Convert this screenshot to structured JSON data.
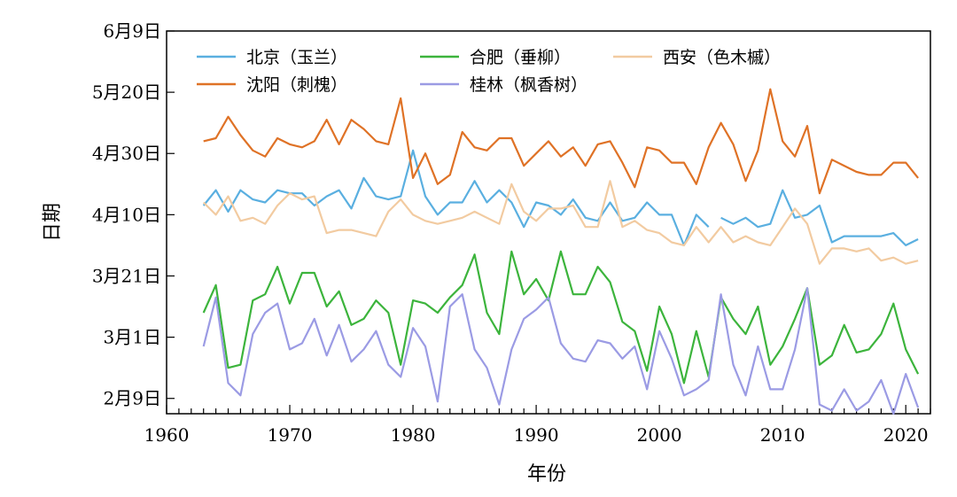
{
  "chart_data": {
    "type": "line",
    "xlabel": "年份",
    "ylabel": "日期",
    "xlim": [
      1960,
      2022
    ],
    "xticks": [
      1960,
      1970,
      1980,
      1990,
      2000,
      2010,
      2020
    ],
    "ylim_doy": [
      35,
      160
    ],
    "yticks": [
      {
        "doy": 40,
        "label": "2月9日"
      },
      {
        "doy": 60,
        "label": "3月1日"
      },
      {
        "doy": 80,
        "label": "3月21日"
      },
      {
        "doy": 100,
        "label": "4月10日"
      },
      {
        "doy": 120,
        "label": "4月30日"
      },
      {
        "doy": 140,
        "label": "5月20日"
      },
      {
        "doy": 160,
        "label": "6月9日"
      }
    ],
    "x": [
      1963,
      1964,
      1965,
      1966,
      1967,
      1968,
      1969,
      1970,
      1971,
      1972,
      1973,
      1974,
      1975,
      1976,
      1977,
      1978,
      1979,
      1980,
      1981,
      1982,
      1983,
      1984,
      1985,
      1986,
      1987,
      1988,
      1989,
      1990,
      1991,
      1992,
      1993,
      1994,
      1995,
      1996,
      1997,
      1998,
      1999,
      2000,
      2001,
      2002,
      2003,
      2004,
      2005,
      2006,
      2007,
      2008,
      2009,
      2010,
      2011,
      2012,
      2013,
      2014,
      2015,
      2016,
      2017,
      2018,
      2019,
      2020,
      2021
    ],
    "series": [
      {
        "name": "北京（玉兰）",
        "color": "#5aafe0",
        "values": [
          103,
          108,
          101,
          108,
          105,
          104,
          108,
          107,
          107,
          103,
          106,
          108,
          102,
          112,
          106,
          105,
          106,
          121,
          106,
          100,
          104,
          104,
          111,
          104,
          108,
          104,
          96,
          104,
          103,
          100,
          105,
          99,
          98,
          104,
          98,
          99,
          104,
          100,
          100,
          90,
          100,
          96,
          99,
          97,
          99,
          96,
          97,
          108,
          99,
          100,
          103,
          91,
          93,
          93,
          93,
          93,
          94,
          90,
          92
        ],
        "segments": [
          [
            1963,
            2004
          ],
          [
            2005,
            2021
          ]
        ]
      },
      {
        "name": "合肥（垂柳）",
        "color": "#3cb43c",
        "values": [
          68,
          77,
          50,
          51,
          72,
          74,
          83,
          71,
          81,
          81,
          70,
          75,
          64,
          66,
          72,
          68,
          51,
          72,
          71,
          68,
          73,
          77,
          87,
          68,
          61,
          88,
          74,
          79,
          72,
          88,
          74,
          74,
          83,
          78,
          65,
          62,
          49,
          70,
          61,
          45,
          62,
          47,
          73,
          66,
          61,
          70,
          51,
          57,
          66,
          76,
          51,
          54,
          64,
          55,
          56,
          61,
          71,
          56,
          48
        ],
        "segments": [
          [
            1963,
            2021
          ]
        ]
      },
      {
        "name": "西安（色木槭）",
        "color": "#f2cba1",
        "values": [
          104,
          100,
          106,
          98,
          99,
          97,
          103,
          107,
          105,
          106,
          94,
          95,
          95,
          94,
          93,
          101,
          105,
          100,
          98,
          97,
          98,
          99,
          101,
          99,
          97,
          110,
          101,
          98,
          102,
          102,
          103,
          96,
          96,
          111,
          96,
          98,
          95,
          94,
          91,
          90,
          96,
          91,
          96,
          91,
          93,
          91,
          90,
          96,
          102,
          97,
          84,
          89,
          89,
          88,
          89,
          85,
          86,
          84,
          85
        ],
        "segments": [
          [
            1963,
            2021
          ]
        ]
      },
      {
        "name": "沈阳（刺槐）",
        "color": "#df7226",
        "values": [
          124,
          125,
          132,
          126,
          121,
          119,
          125,
          123,
          122,
          124,
          131,
          123,
          131,
          128,
          124,
          123,
          138,
          112,
          120,
          110,
          113,
          127,
          122,
          121,
          125,
          125,
          116,
          120,
          124,
          119,
          122,
          116,
          123,
          124,
          117,
          109,
          122,
          121,
          117,
          117,
          110,
          122,
          130,
          123,
          111,
          121,
          141,
          124,
          119,
          129,
          107,
          118,
          116,
          114,
          113,
          113,
          117,
          117,
          112
        ],
        "segments": [
          [
            1963,
            2021
          ]
        ]
      },
      {
        "name": "桂林（枫香树）",
        "color": "#9b9be4",
        "values": [
          57,
          73,
          45,
          41,
          61,
          68,
          71,
          56,
          58,
          66,
          54,
          64,
          52,
          56,
          62,
          51,
          47,
          63,
          57,
          39,
          70,
          74,
          56,
          50,
          38,
          56,
          66,
          69,
          73,
          58,
          53,
          52,
          59,
          58,
          53,
          57,
          43,
          62,
          53,
          41,
          43,
          46,
          74,
          51,
          41,
          57,
          43,
          43,
          56,
          76,
          38,
          36,
          43,
          36,
          39,
          46,
          35,
          48,
          37
        ],
        "segments": [
          [
            1963,
            2021
          ]
        ]
      }
    ],
    "legend": {
      "placement": "top-left",
      "columns": 3
    },
    "grid": false
  }
}
